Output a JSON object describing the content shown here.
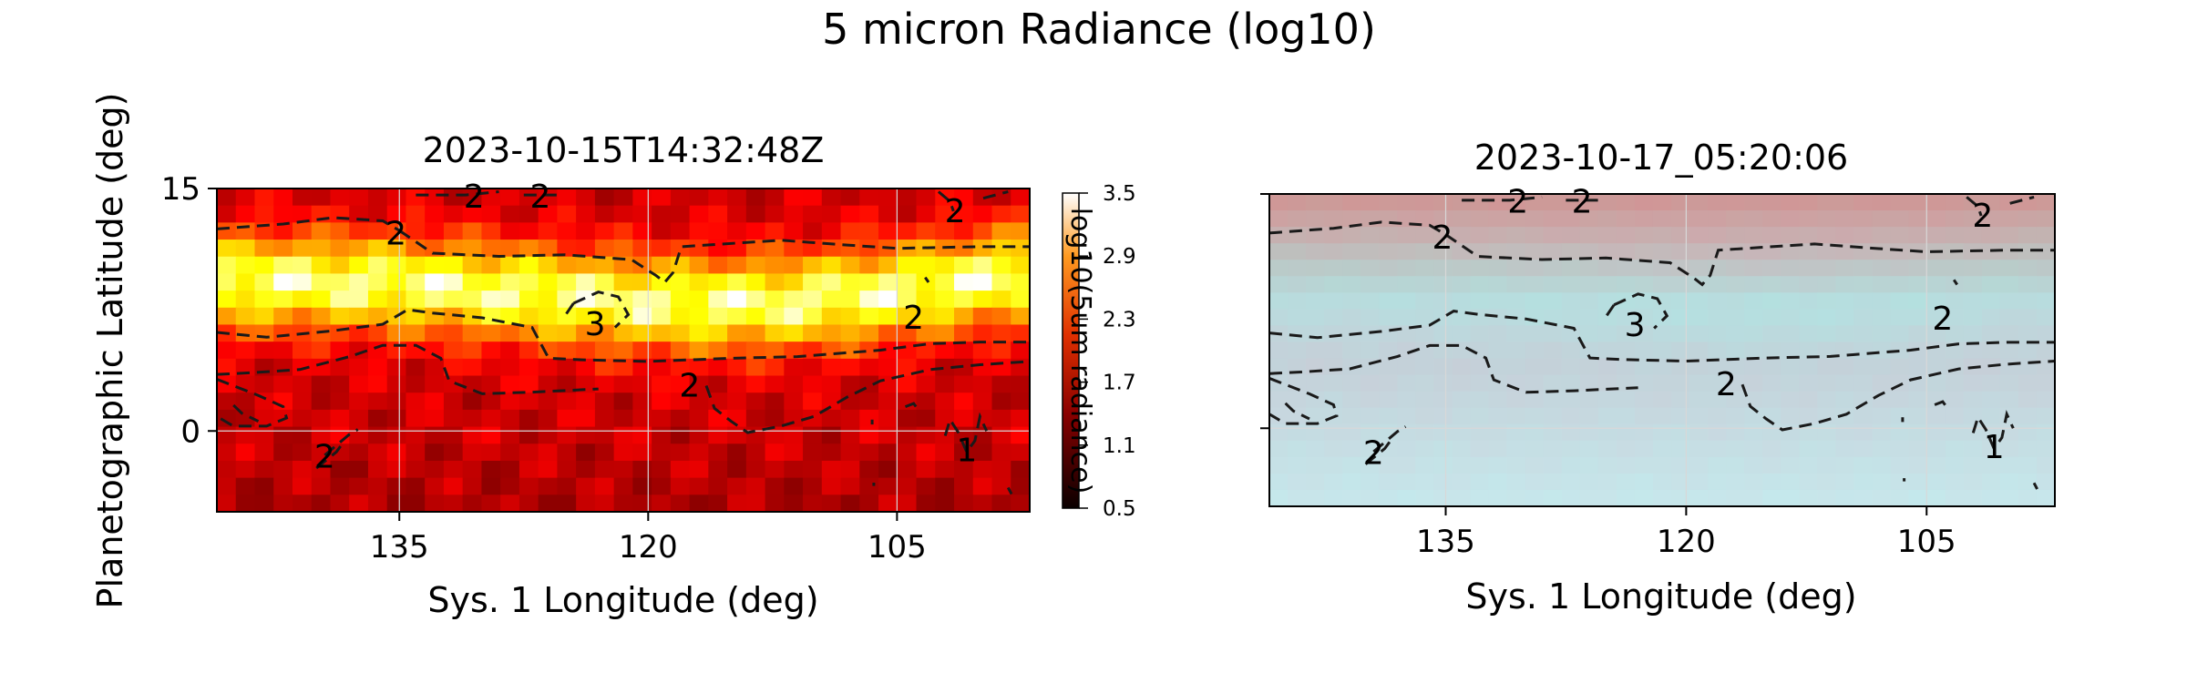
{
  "figure": {
    "suptitle": "5 micron Radiance (log10)"
  },
  "chart_data": [
    {
      "type": "heatmap",
      "title": "2023-10-15T14:32:48Z",
      "xlabel": "Sys. 1 Longitude (deg)",
      "ylabel": "Planetographic Latitude (deg)",
      "xlim": [
        146,
        97
      ],
      "ylim": [
        -5,
        15
      ],
      "xticks": [
        "135",
        "120",
        "105"
      ],
      "xtick_values": [
        135,
        120,
        105
      ],
      "yticks": [
        "0",
        "15"
      ],
      "ytick_values": [
        0,
        15
      ],
      "grid": true,
      "colormap": "hot",
      "colorbar": {
        "label": "log10(5um radiance)",
        "range": [
          0.5,
          3.5
        ],
        "ticks": [
          "3.5",
          "2.9",
          "2.3",
          "1.7",
          "1.1",
          "0.5"
        ],
        "tick_values": [
          3.5,
          2.9,
          2.3,
          1.7,
          1.1,
          0.5
        ]
      },
      "contour_labels": [
        {
          "text": "2",
          "lon": 130.5,
          "lat": 14.5
        },
        {
          "text": "2",
          "lon": 126.5,
          "lat": 14.5
        },
        {
          "text": "2",
          "lon": 101.5,
          "lat": 13.6
        },
        {
          "text": "2",
          "lon": 135.2,
          "lat": 12.2
        },
        {
          "text": "3",
          "lon": 123.2,
          "lat": 6.6
        },
        {
          "text": "2",
          "lon": 104.0,
          "lat": 7.0
        },
        {
          "text": "2",
          "lon": 117.5,
          "lat": 2.8
        },
        {
          "text": "2",
          "lon": 139.5,
          "lat": -1.6
        },
        {
          "text": "1",
          "lon": 100.8,
          "lat": -1.2
        }
      ]
    },
    {
      "type": "heatmap",
      "title": "2023-10-17_05:20:06",
      "xlabel": "Sys. 1 Longitude (deg)",
      "xlim": [
        146,
        97
      ],
      "ylim": [
        -5,
        15
      ],
      "xticks": [
        "135",
        "120",
        "105"
      ],
      "xtick_values": [
        135,
        120,
        105
      ],
      "grid": true,
      "colormap": "false-color RGB",
      "contour_labels": [
        {
          "text": "2",
          "lon": 130.5,
          "lat": 14.5
        },
        {
          "text": "2",
          "lon": 126.5,
          "lat": 14.5
        },
        {
          "text": "2",
          "lon": 101.5,
          "lat": 13.6
        },
        {
          "text": "2",
          "lon": 135.2,
          "lat": 12.2
        },
        {
          "text": "3",
          "lon": 123.2,
          "lat": 6.6
        },
        {
          "text": "2",
          "lon": 104.0,
          "lat": 7.0
        },
        {
          "text": "2",
          "lon": 117.5,
          "lat": 2.8
        },
        {
          "text": "2",
          "lon": 139.5,
          "lat": -1.6
        },
        {
          "text": "1",
          "lon": 100.8,
          "lat": -1.2
        }
      ]
    }
  ]
}
